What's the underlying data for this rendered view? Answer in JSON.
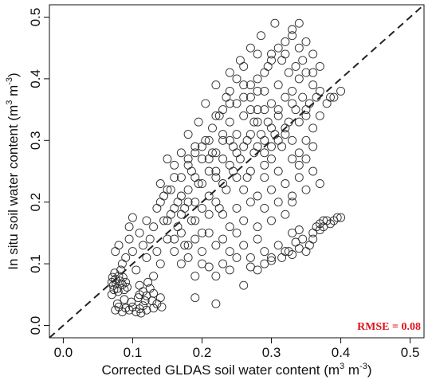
{
  "chart_data": {
    "type": "scatter",
    "xlabel": "Corrected GLDAS soil water content (m",
    "xlabel_units_sup": "3",
    "xlabel_mid": " m",
    "xlabel_units_sup2": "-3",
    "xlabel_end": ")",
    "ylabel": "In situ soil water content  (m",
    "ylabel_units_sup": "3",
    "ylabel_mid": " m",
    "ylabel_units_sup2": "-3",
    "ylabel_end": ")",
    "xlim": [
      -0.02,
      0.52
    ],
    "ylim": [
      -0.02,
      0.52
    ],
    "xticks": [
      0.0,
      0.1,
      0.2,
      0.3,
      0.4,
      0.5
    ],
    "xtick_labels": [
      "0.0",
      "0.1",
      "0.2",
      "0.3",
      "0.4",
      "0.5"
    ],
    "yticks": [
      0.0,
      0.1,
      0.2,
      0.3,
      0.4,
      0.5
    ],
    "ytick_labels": [
      "0.0",
      "0.1",
      "0.2",
      "0.3",
      "0.4",
      "0.5"
    ],
    "reference_line": "1:1 dashed",
    "annotation": "RMSE = 0.08",
    "annotation_color": "#e0141e",
    "marker": "open circle",
    "grid": false,
    "points": [
      [
        0.07,
        0.07
      ],
      [
        0.072,
        0.065
      ],
      [
        0.075,
        0.075
      ],
      [
        0.078,
        0.06
      ],
      [
        0.08,
        0.08
      ],
      [
        0.073,
        0.058
      ],
      [
        0.076,
        0.068
      ],
      [
        0.082,
        0.072
      ],
      [
        0.085,
        0.066
      ],
      [
        0.07,
        0.05
      ],
      [
        0.071,
        0.078
      ],
      [
        0.079,
        0.055
      ],
      [
        0.083,
        0.09
      ],
      [
        0.088,
        0.058
      ],
      [
        0.09,
        0.07
      ],
      [
        0.074,
        0.085
      ],
      [
        0.086,
        0.078
      ],
      [
        0.092,
        0.062
      ],
      [
        0.075,
        0.025
      ],
      [
        0.08,
        0.03
      ],
      [
        0.085,
        0.022
      ],
      [
        0.09,
        0.028
      ],
      [
        0.078,
        0.035
      ],
      [
        0.095,
        0.025
      ],
      [
        0.1,
        0.03
      ],
      [
        0.105,
        0.022
      ],
      [
        0.11,
        0.027
      ],
      [
        0.115,
        0.032
      ],
      [
        0.12,
        0.025
      ],
      [
        0.112,
        0.02
      ],
      [
        0.118,
        0.04
      ],
      [
        0.108,
        0.045
      ],
      [
        0.13,
        0.028
      ],
      [
        0.088,
        0.042
      ],
      [
        0.098,
        0.038
      ],
      [
        0.11,
        0.05
      ],
      [
        0.115,
        0.055
      ],
      [
        0.12,
        0.048
      ],
      [
        0.125,
        0.06
      ],
      [
        0.13,
        0.052
      ],
      [
        0.11,
        0.065
      ],
      [
        0.14,
        0.045
      ],
      [
        0.122,
        0.07
      ],
      [
        0.135,
        0.035
      ],
      [
        0.142,
        0.03
      ],
      [
        0.128,
        0.04
      ],
      [
        0.075,
        0.12
      ],
      [
        0.08,
        0.13
      ],
      [
        0.085,
        0.1
      ],
      [
        0.09,
        0.11
      ],
      [
        0.095,
        0.14
      ],
      [
        0.1,
        0.12
      ],
      [
        0.1,
        0.175
      ],
      [
        0.095,
        0.16
      ],
      [
        0.105,
        0.09
      ],
      [
        0.11,
        0.15
      ],
      [
        0.115,
        0.13
      ],
      [
        0.12,
        0.17
      ],
      [
        0.12,
        0.11
      ],
      [
        0.125,
        0.14
      ],
      [
        0.13,
        0.08
      ],
      [
        0.13,
        0.16
      ],
      [
        0.135,
        0.19
      ],
      [
        0.135,
        0.12
      ],
      [
        0.14,
        0.1
      ],
      [
        0.14,
        0.23
      ],
      [
        0.145,
        0.17
      ],
      [
        0.145,
        0.21
      ],
      [
        0.15,
        0.14
      ],
      [
        0.15,
        0.27
      ],
      [
        0.155,
        0.18
      ],
      [
        0.155,
        0.22
      ],
      [
        0.16,
        0.12
      ],
      [
        0.16,
        0.26
      ],
      [
        0.165,
        0.2
      ],
      [
        0.165,
        0.16
      ],
      [
        0.17,
        0.24
      ],
      [
        0.17,
        0.28
      ],
      [
        0.175,
        0.13
      ],
      [
        0.175,
        0.19
      ],
      [
        0.18,
        0.22
      ],
      [
        0.18,
        0.31
      ],
      [
        0.185,
        0.25
      ],
      [
        0.185,
        0.17
      ],
      [
        0.19,
        0.29
      ],
      [
        0.19,
        0.2
      ],
      [
        0.195,
        0.33
      ],
      [
        0.195,
        0.23
      ],
      [
        0.2,
        0.27
      ],
      [
        0.2,
        0.15
      ],
      [
        0.205,
        0.3
      ],
      [
        0.205,
        0.36
      ],
      [
        0.21,
        0.25
      ],
      [
        0.21,
        0.21
      ],
      [
        0.215,
        0.32
      ],
      [
        0.215,
        0.28
      ],
      [
        0.22,
        0.39
      ],
      [
        0.22,
        0.24
      ],
      [
        0.225,
        0.34
      ],
      [
        0.225,
        0.19
      ],
      [
        0.23,
        0.3
      ],
      [
        0.23,
        0.27
      ],
      [
        0.235,
        0.37
      ],
      [
        0.235,
        0.22
      ],
      [
        0.24,
        0.33
      ],
      [
        0.24,
        0.41
      ],
      [
        0.245,
        0.29
      ],
      [
        0.245,
        0.25
      ],
      [
        0.25,
        0.36
      ],
      [
        0.25,
        0.31
      ],
      [
        0.255,
        0.43
      ],
      [
        0.255,
        0.27
      ],
      [
        0.26,
        0.34
      ],
      [
        0.26,
        0.39
      ],
      [
        0.265,
        0.3
      ],
      [
        0.265,
        0.24
      ],
      [
        0.27,
        0.37
      ],
      [
        0.27,
        0.45
      ],
      [
        0.275,
        0.33
      ],
      [
        0.275,
        0.28
      ],
      [
        0.28,
        0.4
      ],
      [
        0.28,
        0.35
      ],
      [
        0.285,
        0.31
      ],
      [
        0.285,
        0.47
      ],
      [
        0.29,
        0.38
      ],
      [
        0.29,
        0.26
      ],
      [
        0.295,
        0.42
      ],
      [
        0.295,
        0.33
      ],
      [
        0.3,
        0.36
      ],
      [
        0.3,
        0.44
      ],
      [
        0.305,
        0.31
      ],
      [
        0.305,
        0.49
      ],
      [
        0.31,
        0.39
      ],
      [
        0.31,
        0.35
      ],
      [
        0.315,
        0.43
      ],
      [
        0.315,
        0.29
      ],
      [
        0.32,
        0.37
      ],
      [
        0.32,
        0.46
      ],
      [
        0.325,
        0.41
      ],
      [
        0.325,
        0.33
      ],
      [
        0.33,
        0.48
      ],
      [
        0.33,
        0.38
      ],
      [
        0.335,
        0.42
      ],
      [
        0.335,
        0.35
      ],
      [
        0.34,
        0.45
      ],
      [
        0.34,
        0.4
      ],
      [
        0.345,
        0.43
      ],
      [
        0.345,
        0.37
      ],
      [
        0.35,
        0.41
      ],
      [
        0.35,
        0.34
      ],
      [
        0.355,
        0.36
      ],
      [
        0.36,
        0.39
      ],
      [
        0.365,
        0.37
      ],
      [
        0.37,
        0.38
      ],
      [
        0.14,
        0.2
      ],
      [
        0.15,
        0.22
      ],
      [
        0.16,
        0.24
      ],
      [
        0.17,
        0.21
      ],
      [
        0.18,
        0.26
      ],
      [
        0.19,
        0.24
      ],
      [
        0.2,
        0.23
      ],
      [
        0.21,
        0.27
      ],
      [
        0.22,
        0.25
      ],
      [
        0.23,
        0.23
      ],
      [
        0.24,
        0.26
      ],
      [
        0.25,
        0.24
      ],
      [
        0.26,
        0.22
      ],
      [
        0.27,
        0.25
      ],
      [
        0.28,
        0.21
      ],
      [
        0.29,
        0.24
      ],
      [
        0.3,
        0.22
      ],
      [
        0.31,
        0.25
      ],
      [
        0.32,
        0.23
      ],
      [
        0.33,
        0.21
      ],
      [
        0.34,
        0.24
      ],
      [
        0.35,
        0.22
      ],
      [
        0.36,
        0.25
      ],
      [
        0.37,
        0.23
      ],
      [
        0.15,
        0.17
      ],
      [
        0.16,
        0.19
      ],
      [
        0.17,
        0.18
      ],
      [
        0.18,
        0.2
      ],
      [
        0.19,
        0.17
      ],
      [
        0.2,
        0.19
      ],
      [
        0.21,
        0.18
      ],
      [
        0.22,
        0.2
      ],
      [
        0.23,
        0.18
      ],
      [
        0.24,
        0.16
      ],
      [
        0.25,
        0.19
      ],
      [
        0.26,
        0.17
      ],
      [
        0.27,
        0.2
      ],
      [
        0.28,
        0.16
      ],
      [
        0.29,
        0.19
      ],
      [
        0.3,
        0.17
      ],
      [
        0.31,
        0.2
      ],
      [
        0.32,
        0.18
      ],
      [
        0.33,
        0.2
      ],
      [
        0.16,
        0.14
      ],
      [
        0.17,
        0.15
      ],
      [
        0.18,
        0.13
      ],
      [
        0.19,
        0.14
      ],
      [
        0.2,
        0.12
      ],
      [
        0.21,
        0.15
      ],
      [
        0.22,
        0.13
      ],
      [
        0.23,
        0.14
      ],
      [
        0.24,
        0.12
      ],
      [
        0.25,
        0.15
      ],
      [
        0.26,
        0.13
      ],
      [
        0.27,
        0.11
      ],
      [
        0.28,
        0.14
      ],
      [
        0.29,
        0.12
      ],
      [
        0.17,
        0.1
      ],
      [
        0.18,
        0.11
      ],
      [
        0.19,
        0.08
      ],
      [
        0.2,
        0.1
      ],
      [
        0.21,
        0.095
      ],
      [
        0.22,
        0.08
      ],
      [
        0.23,
        0.1
      ],
      [
        0.24,
        0.09
      ],
      [
        0.25,
        0.11
      ],
      [
        0.26,
        0.065
      ],
      [
        0.27,
        0.095
      ],
      [
        0.28,
        0.09
      ],
      [
        0.29,
        0.1
      ],
      [
        0.3,
        0.11
      ],
      [
        0.31,
        0.13
      ],
      [
        0.32,
        0.12
      ],
      [
        0.33,
        0.115
      ],
      [
        0.34,
        0.125
      ],
      [
        0.22,
        0.035
      ],
      [
        0.19,
        0.045
      ],
      [
        0.3,
        0.105
      ],
      [
        0.315,
        0.11
      ],
      [
        0.325,
        0.12
      ],
      [
        0.335,
        0.135
      ],
      [
        0.34,
        0.155
      ],
      [
        0.33,
        0.15
      ],
      [
        0.345,
        0.14
      ],
      [
        0.35,
        0.12
      ],
      [
        0.355,
        0.13
      ],
      [
        0.36,
        0.15
      ],
      [
        0.365,
        0.16
      ],
      [
        0.37,
        0.165
      ],
      [
        0.375,
        0.16
      ],
      [
        0.38,
        0.17
      ],
      [
        0.385,
        0.165
      ],
      [
        0.39,
        0.17
      ],
      [
        0.395,
        0.175
      ],
      [
        0.4,
        0.175
      ],
      [
        0.36,
        0.14
      ],
      [
        0.37,
        0.155
      ],
      [
        0.375,
        0.17
      ],
      [
        0.28,
        0.33
      ],
      [
        0.29,
        0.35
      ],
      [
        0.3,
        0.32
      ],
      [
        0.31,
        0.34
      ],
      [
        0.32,
        0.31
      ],
      [
        0.33,
        0.36
      ],
      [
        0.34,
        0.33
      ],
      [
        0.35,
        0.35
      ],
      [
        0.36,
        0.32
      ],
      [
        0.37,
        0.34
      ],
      [
        0.38,
        0.36
      ],
      [
        0.39,
        0.37
      ],
      [
        0.4,
        0.38
      ],
      [
        0.385,
        0.37
      ],
      [
        0.24,
        0.38
      ],
      [
        0.25,
        0.4
      ],
      [
        0.26,
        0.42
      ],
      [
        0.27,
        0.39
      ],
      [
        0.28,
        0.44
      ],
      [
        0.29,
        0.41
      ],
      [
        0.3,
        0.43
      ],
      [
        0.31,
        0.45
      ],
      [
        0.32,
        0.44
      ],
      [
        0.33,
        0.47
      ],
      [
        0.34,
        0.49
      ],
      [
        0.35,
        0.46
      ],
      [
        0.36,
        0.44
      ],
      [
        0.37,
        0.42
      ],
      [
        0.36,
        0.41
      ],
      [
        0.22,
        0.34
      ],
      [
        0.23,
        0.35
      ],
      [
        0.24,
        0.36
      ],
      [
        0.26,
        0.37
      ],
      [
        0.27,
        0.35
      ],
      [
        0.28,
        0.38
      ],
      [
        0.29,
        0.3
      ],
      [
        0.3,
        0.29
      ],
      [
        0.31,
        0.3
      ],
      [
        0.32,
        0.32
      ],
      [
        0.33,
        0.3
      ],
      [
        0.34,
        0.28
      ],
      [
        0.35,
        0.3
      ],
      [
        0.36,
        0.29
      ],
      [
        0.33,
        0.27
      ],
      [
        0.34,
        0.26
      ],
      [
        0.35,
        0.27
      ],
      [
        0.18,
        0.27
      ],
      [
        0.19,
        0.28
      ],
      [
        0.2,
        0.29
      ],
      [
        0.21,
        0.3
      ],
      [
        0.22,
        0.28
      ],
      [
        0.23,
        0.31
      ],
      [
        0.24,
        0.3
      ],
      [
        0.25,
        0.28
      ],
      [
        0.26,
        0.29
      ],
      [
        0.27,
        0.31
      ],
      [
        0.28,
        0.29
      ],
      [
        0.29,
        0.28
      ],
      [
        0.3,
        0.27
      ]
    ]
  }
}
